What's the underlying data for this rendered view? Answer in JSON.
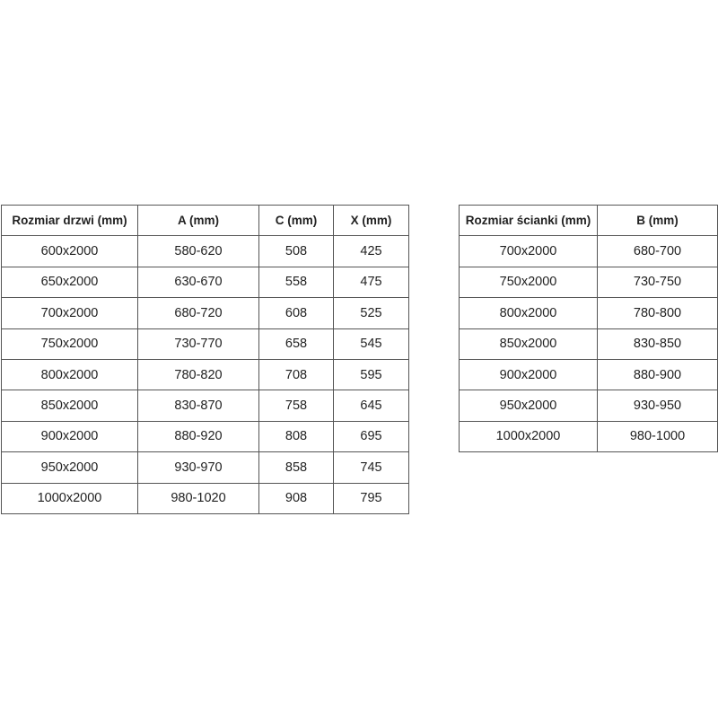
{
  "doors_table": {
    "headers": [
      "Rozmiar drzwi (mm)",
      "A (mm)",
      "C (mm)",
      "X (mm)"
    ],
    "rows": [
      [
        "600x2000",
        "580-620",
        "508",
        "425"
      ],
      [
        "650x2000",
        "630-670",
        "558",
        "475"
      ],
      [
        "700x2000",
        "680-720",
        "608",
        "525"
      ],
      [
        "750x2000",
        "730-770",
        "658",
        "545"
      ],
      [
        "800x2000",
        "780-820",
        "708",
        "595"
      ],
      [
        "850x2000",
        "830-870",
        "758",
        "645"
      ],
      [
        "900x2000",
        "880-920",
        "808",
        "695"
      ],
      [
        "950x2000",
        "930-970",
        "858",
        "745"
      ],
      [
        "1000x2000",
        "980-1020",
        "908",
        "795"
      ]
    ]
  },
  "wall_table": {
    "headers": [
      "Rozmiar ścianki (mm)",
      "B (mm)"
    ],
    "rows": [
      [
        "700x2000",
        "680-700"
      ],
      [
        "750x2000",
        "730-750"
      ],
      [
        "800x2000",
        "780-800"
      ],
      [
        "850x2000",
        "830-850"
      ],
      [
        "900x2000",
        "880-900"
      ],
      [
        "950x2000",
        "930-950"
      ],
      [
        "1000x2000",
        "980-1000"
      ]
    ]
  }
}
